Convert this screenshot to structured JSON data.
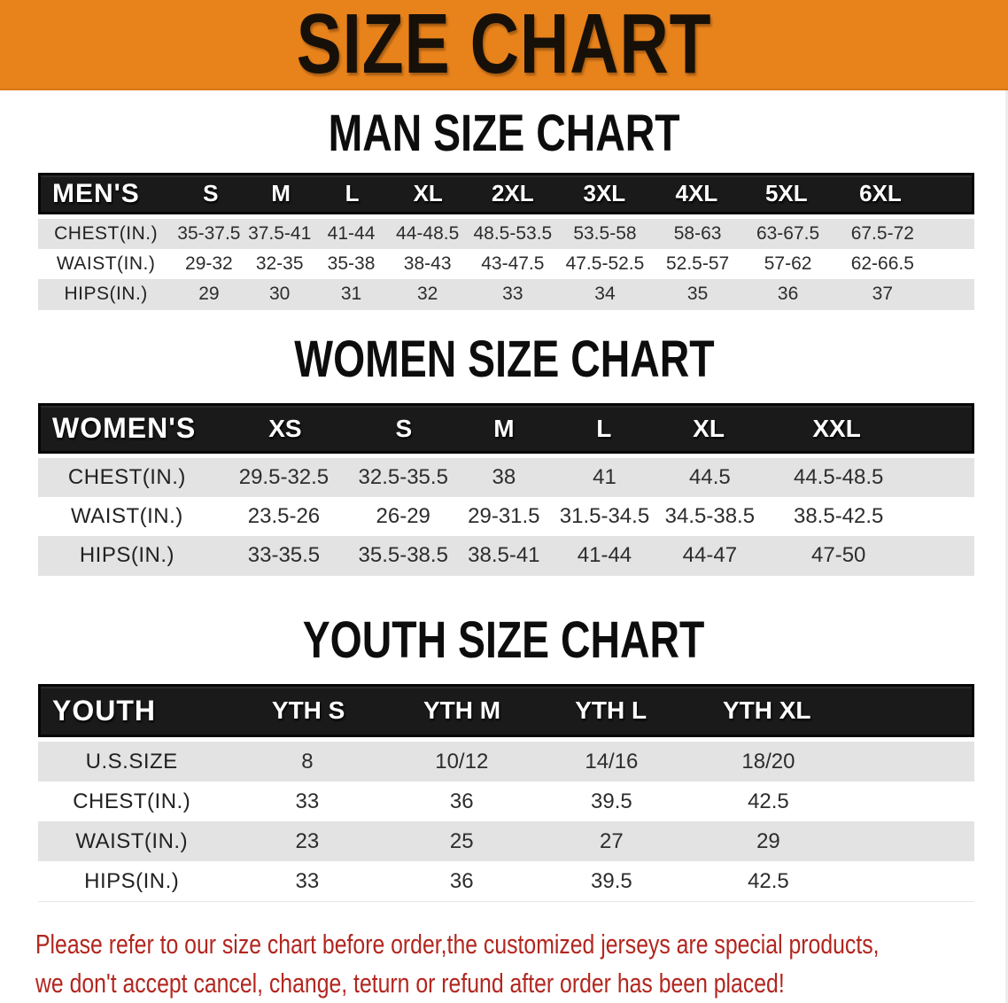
{
  "banner": {
    "title": "SIZE CHART",
    "bg": "#E8821B"
  },
  "sections": [
    {
      "key": "men",
      "heading": "MAN SIZE CHART",
      "table": {
        "header_label": "MEN'S",
        "sizes": [
          "S",
          "M",
          "L",
          "XL",
          "2XL",
          "3XL",
          "4XL",
          "5XL",
          "6XL"
        ],
        "rows": [
          {
            "label": "CHEST(IN.)",
            "values": [
              "35-37.5",
              "37.5-41",
              "41-44",
              "44-48.5",
              "48.5-53.5",
              "53.5-58",
              "58-63",
              "63-67.5",
              "67.5-72"
            ]
          },
          {
            "label": "WAIST(IN.)",
            "values": [
              "29-32",
              "32-35",
              "35-38",
              "38-43",
              "43-47.5",
              "47.5-52.5",
              "52.5-57",
              "57-62",
              "62-66.5"
            ]
          },
          {
            "label": "HIPS(IN.)",
            "values": [
              "29",
              "30",
              "31",
              "32",
              "33",
              "34",
              "35",
              "36",
              "37"
            ]
          }
        ]
      }
    },
    {
      "key": "women",
      "heading": "WOMEN SIZE CHART",
      "table": {
        "header_label": "WOMEN'S",
        "sizes": [
          "XS",
          "S",
          "M",
          "L",
          "XL",
          "XXL"
        ],
        "rows": [
          {
            "label": "CHEST(IN.)",
            "values": [
              "29.5-32.5",
              "32.5-35.5",
              "38",
              "41",
              "44.5",
              "44.5-48.5"
            ]
          },
          {
            "label": "WAIST(IN.)",
            "values": [
              "23.5-26",
              "26-29",
              "29-31.5",
              "31.5-34.5",
              "34.5-38.5",
              "38.5-42.5"
            ]
          },
          {
            "label": "HIPS(IN.)",
            "values": [
              "33-35.5",
              "35.5-38.5",
              "38.5-41",
              "41-44",
              "44-47",
              "47-50"
            ]
          }
        ]
      }
    },
    {
      "key": "youth",
      "heading": "YOUTH SIZE CHART",
      "table": {
        "header_label": "YOUTH",
        "sizes": [
          "YTH S",
          "YTH M",
          "YTH L",
          "YTH XL"
        ],
        "rows": [
          {
            "label": "U.S.SIZE",
            "values": [
              "8",
              "10/12",
              "14/16",
              "18/20"
            ]
          },
          {
            "label": "CHEST(IN.)",
            "values": [
              "33",
              "36",
              "39.5",
              "42.5"
            ]
          },
          {
            "label": "WAIST(IN.)",
            "values": [
              "23",
              "25",
              "27",
              "29"
            ]
          },
          {
            "label": "HIPS(IN.)",
            "values": [
              "33",
              "36",
              "39.5",
              "42.5"
            ]
          }
        ]
      }
    }
  ],
  "footer": {
    "line1": "Please refer to our size chart before order,the customized jerseys are special products,",
    "line2": "we don't accept cancel, change, teturn or refund after order has been placed!",
    "color": "#B2261F"
  }
}
